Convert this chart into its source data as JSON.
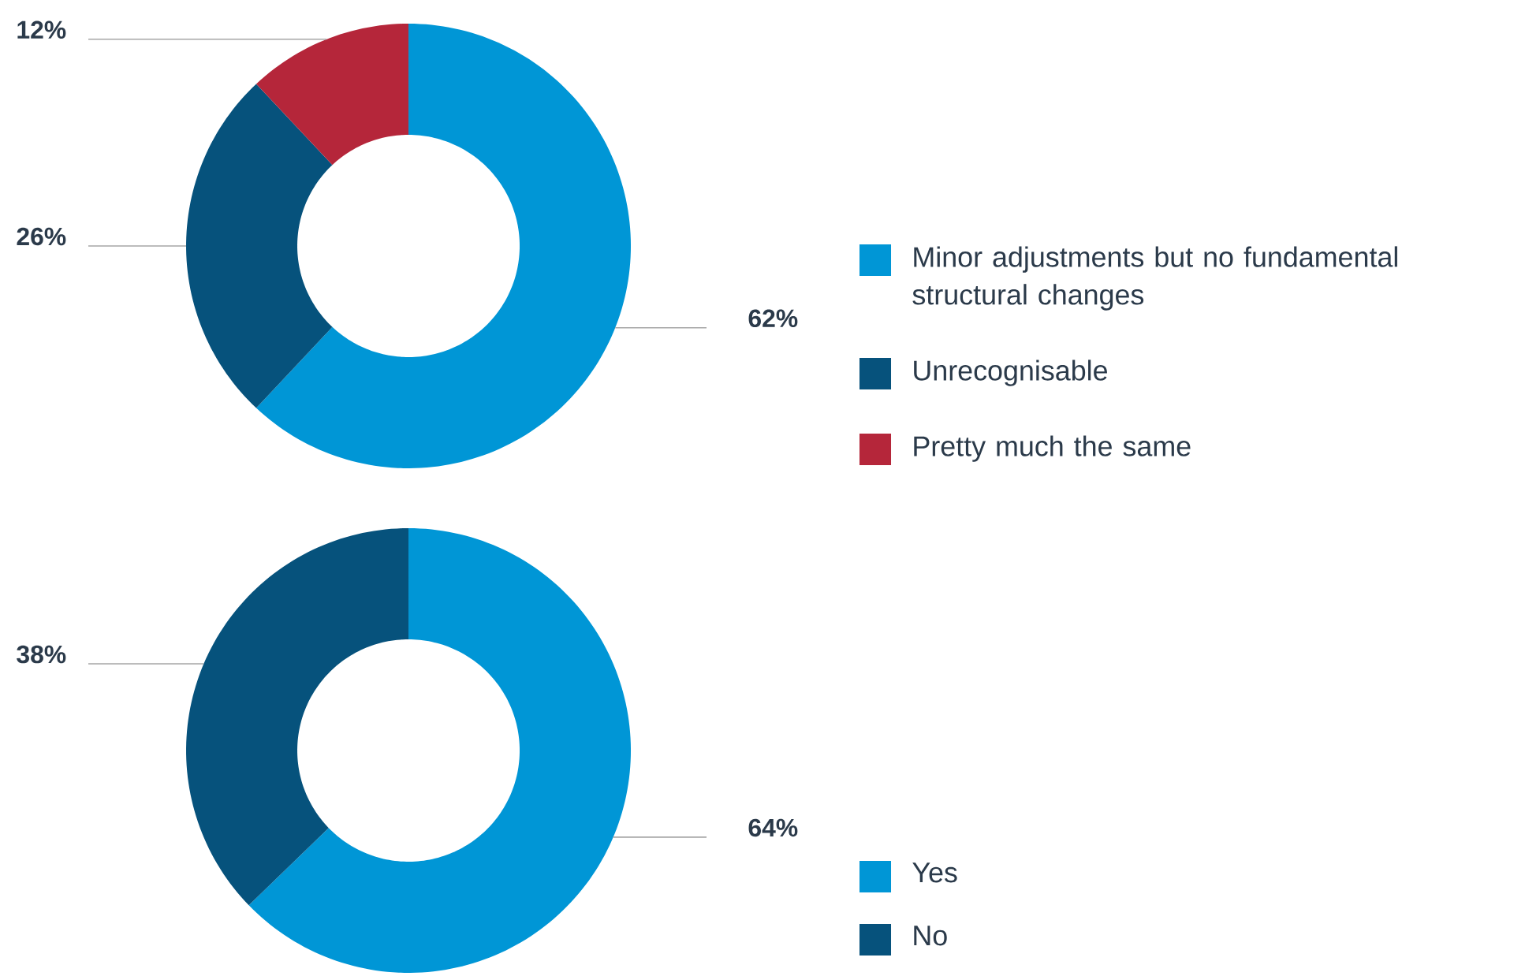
{
  "chart_data": [
    {
      "type": "donut",
      "categories": [
        "Minor adjustments but no fundamental structural changes",
        "Unrecognisable",
        "Pretty much the same"
      ],
      "values": [
        62,
        26,
        12
      ],
      "value_labels": [
        "62%",
        "26%",
        "12%"
      ],
      "colors": [
        "#0096d6",
        "#06527c",
        "#b5263a"
      ],
      "legend": "right"
    },
    {
      "type": "donut",
      "categories": [
        "Yes",
        "No"
      ],
      "values": [
        64,
        38
      ],
      "value_labels": [
        "64%",
        "38%"
      ],
      "colors": [
        "#0096d6",
        "#06527c"
      ],
      "legend": "right"
    }
  ]
}
